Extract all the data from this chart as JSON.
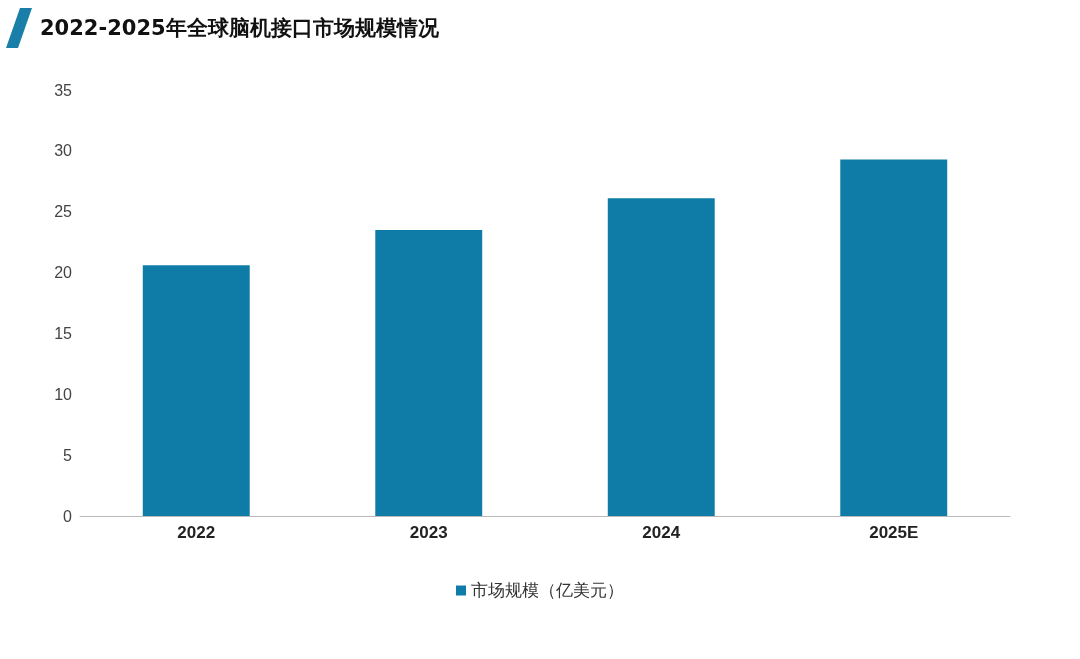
{
  "chart_data": {
    "type": "bar",
    "title": "2022-2025年全球脑机接口市场规模情况",
    "categories": [
      "2022",
      "2023",
      "2024",
      "2025E"
    ],
    "series": [
      {
        "name": "市场规模（亿美元）",
        "color": "#0e7ca6",
        "values": [
          20.6,
          23.5,
          26.1,
          29.3
        ]
      }
    ],
    "ylim": [
      0,
      35
    ],
    "yticks": [
      0,
      5,
      10,
      15,
      20,
      25,
      30,
      35
    ],
    "grid": false,
    "legend": "bottom"
  }
}
